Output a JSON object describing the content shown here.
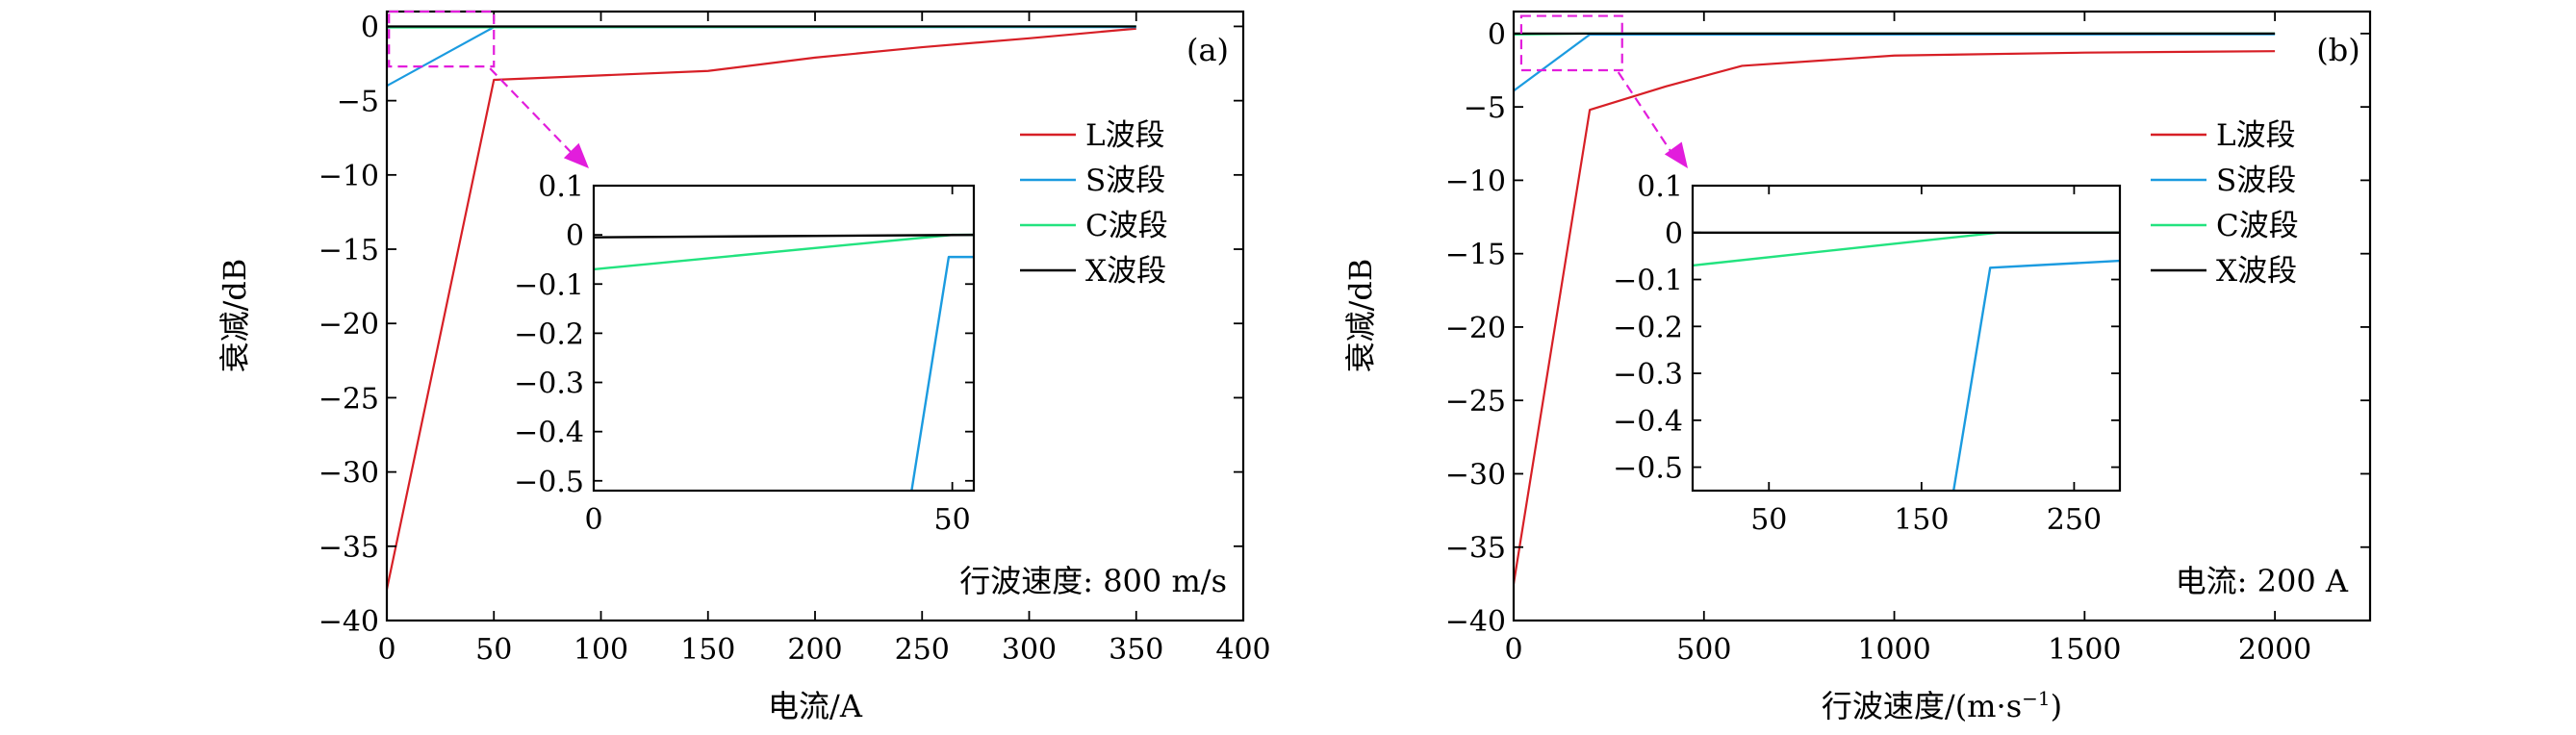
{
  "legend_labels": [
    "L波段",
    "S波段",
    "C波段",
    "X波段"
  ],
  "colors": {
    "L": "#d71f26",
    "S": "#1b9be0",
    "C": "#22e37f",
    "X": "#000000",
    "zoom_box": "#e21ddc"
  },
  "chart_data": [
    {
      "type": "line",
      "panel_label": "(a)",
      "annotation": "行波速度: 800 m/s",
      "xlabel": "电流/A",
      "ylabel": "衰减/dB",
      "xlim": [
        0,
        400
      ],
      "ylim": [
        -40,
        1
      ],
      "xticks": [
        0,
        50,
        100,
        150,
        200,
        250,
        300,
        350,
        400
      ],
      "yticks": [
        0,
        -5,
        -10,
        -15,
        -20,
        -25,
        -30,
        -35,
        -40
      ],
      "ytick_labels": [
        "0",
        "−5",
        "−10",
        "−15",
        "−20",
        "−25",
        "−30",
        "−35",
        "−40"
      ],
      "grid": false,
      "legend_position": "right",
      "series": [
        {
          "name": "L波段",
          "color_key": "L",
          "x": [
            0,
            50,
            100,
            150,
            200,
            250,
            300,
            350
          ],
          "y": [
            -37.9,
            -3.6,
            -3.3,
            -3.0,
            -2.1,
            -1.4,
            -0.8,
            -0.15
          ]
        },
        {
          "name": "S波段",
          "color_key": "S",
          "x": [
            0,
            50,
            350
          ],
          "y": [
            -4.0,
            -0.05,
            -0.05
          ]
        },
        {
          "name": "C波段",
          "color_key": "C",
          "x": [
            0,
            350
          ],
          "y": [
            -0.07,
            0.0
          ]
        },
        {
          "name": "X波段",
          "color_key": "X",
          "x": [
            0,
            350
          ],
          "y": [
            -0.005,
            0.0
          ]
        }
      ],
      "zoom_box": {
        "x": [
          1,
          50
        ],
        "y": [
          -2.7,
          1
        ]
      },
      "inset": {
        "xlim": [
          0,
          53
        ],
        "ylim": [
          -0.52,
          0.1
        ],
        "xticks": [
          0,
          50
        ],
        "yticks": [
          0.1,
          0,
          -0.1,
          -0.2,
          -0.3,
          -0.4,
          -0.5
        ],
        "ytick_labels": [
          "0.1",
          "0",
          "−0.1",
          "−0.2",
          "−0.3",
          "−0.4",
          "−0.5"
        ],
        "series": [
          {
            "color_key": "C",
            "x": [
              0,
              50,
              53
            ],
            "y": [
              -0.07,
              0,
              0
            ]
          },
          {
            "color_key": "X",
            "x": [
              0,
              53
            ],
            "y": [
              -0.005,
              0
            ]
          },
          {
            "color_key": "S",
            "x": [
              44,
              49.5,
              53
            ],
            "y": [
              -0.55,
              -0.045,
              -0.045
            ]
          }
        ]
      }
    },
    {
      "type": "line",
      "panel_label": "(b)",
      "annotation": "电流: 200 A",
      "xlabel": "行波速度/(m·s",
      "xlabel_sup": "−1",
      "xlabel_end": ")",
      "ylabel": "衰减/dB",
      "xlim": [
        0,
        2250
      ],
      "ylim": [
        -40,
        1.5
      ],
      "xticks": [
        0,
        500,
        1000,
        1500,
        2000
      ],
      "yticks": [
        0,
        -5,
        -10,
        -15,
        -20,
        -25,
        -30,
        -35,
        -40
      ],
      "ytick_labels": [
        "0",
        "−5",
        "−10",
        "−15",
        "−20",
        "−25",
        "−30",
        "−35",
        "−40"
      ],
      "grid": false,
      "legend_position": "right",
      "series": [
        {
          "name": "L波段",
          "color_key": "L",
          "x": [
            0,
            200,
            400,
            600,
            1000,
            1500,
            2000
          ],
          "y": [
            -37.5,
            -5.2,
            -3.6,
            -2.2,
            -1.5,
            -1.3,
            -1.2
          ]
        },
        {
          "name": "S波段",
          "color_key": "S",
          "x": [
            0,
            200,
            2000
          ],
          "y": [
            -3.9,
            -0.07,
            -0.05
          ]
        },
        {
          "name": "C波段",
          "color_key": "C",
          "x": [
            0,
            200,
            2000
          ],
          "y": [
            -0.07,
            0,
            0
          ]
        },
        {
          "name": "X波段",
          "color_key": "X",
          "x": [
            0,
            2000
          ],
          "y": [
            0,
            0
          ]
        }
      ],
      "zoom_box": {
        "x": [
          20,
          285
        ],
        "y": [
          -2.5,
          1.2
        ]
      },
      "inset": {
        "xlim": [
          0,
          280
        ],
        "ylim": [
          -0.55,
          0.1
        ],
        "xticks": [
          50,
          150,
          250
        ],
        "yticks": [
          0.1,
          0,
          -0.1,
          -0.2,
          -0.3,
          -0.4,
          -0.5
        ],
        "ytick_labels": [
          "0.1",
          "0",
          "−0.1",
          "−0.2",
          "−0.3",
          "−0.4",
          "−0.5"
        ],
        "series": [
          {
            "color_key": "C",
            "x": [
              0,
              200,
              280
            ],
            "y": [
              -0.07,
              0,
              0
            ]
          },
          {
            "color_key": "X",
            "x": [
              0,
              280
            ],
            "y": [
              0,
              0
            ]
          },
          {
            "color_key": "S",
            "x": [
              170,
              195,
              280
            ],
            "y": [
              -0.57,
              -0.075,
              -0.06
            ]
          }
        ]
      }
    }
  ]
}
